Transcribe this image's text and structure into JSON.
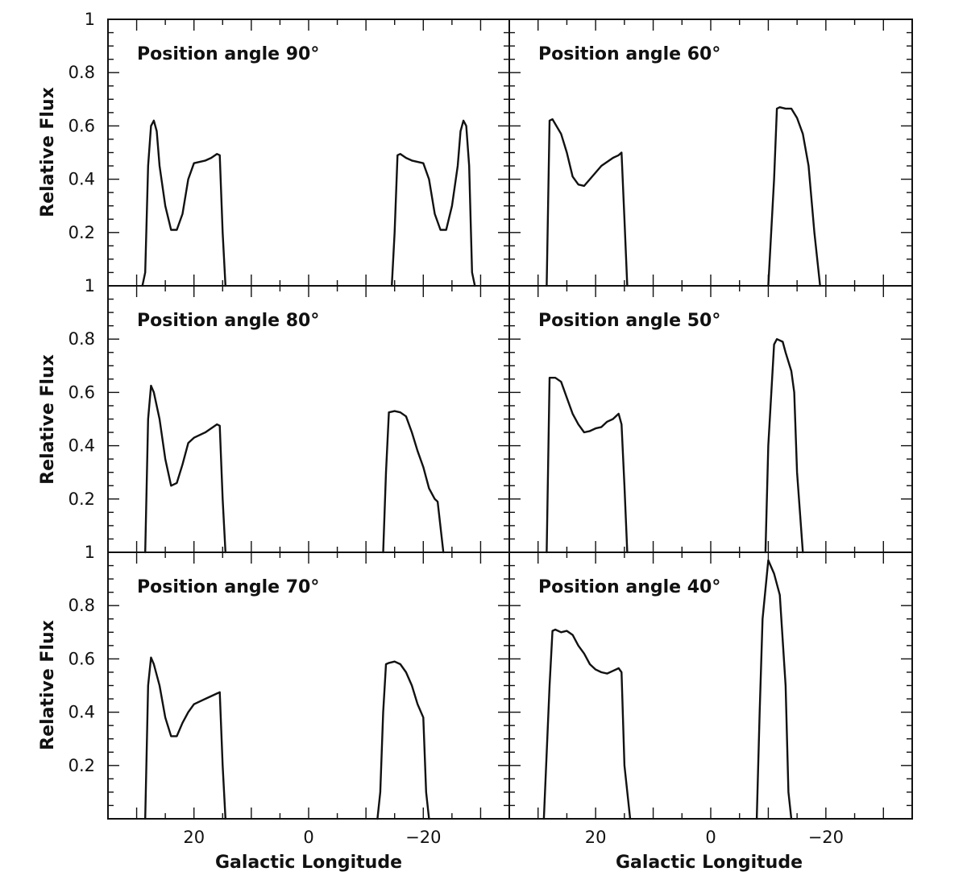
{
  "chart_data": {
    "type": "line",
    "layout": {
      "rows": 3,
      "cols": 2
    },
    "xlabel": "Galactic Longitude",
    "ylabel": "Relative Flux",
    "xlim": [
      35,
      -35
    ],
    "ylim": [
      0,
      1
    ],
    "x_ticks": [
      20,
      0,
      -20
    ],
    "x_tick_labels": [
      "20",
      "0",
      "−20"
    ],
    "y_tick_labels": [
      [
        {
          "value": 0.2,
          "label": "0.2"
        },
        {
          "value": 0.4,
          "label": "0.4"
        },
        {
          "value": 0.6,
          "label": "0.6"
        },
        {
          "value": 0.8,
          "label": "0.8"
        },
        {
          "value": 1.0,
          "label": "1"
        }
      ],
      [
        {
          "value": 0.2,
          "label": "0.2"
        },
        {
          "value": 0.4,
          "label": "0.4"
        },
        {
          "value": 0.6,
          "label": "0.6"
        },
        {
          "value": 0.8,
          "label": "0.8"
        },
        {
          "value": 1.0,
          "label": "1"
        }
      ],
      [
        {
          "value": 0.2,
          "label": "0.2"
        },
        {
          "value": 0.4,
          "label": "0.4"
        },
        {
          "value": 0.6,
          "label": "0.6"
        },
        {
          "value": 0.8,
          "label": "0.8"
        },
        {
          "value": 1.0,
          "label": "1"
        }
      ]
    ],
    "panels": [
      {
        "title": "Position angle 90°",
        "row": 0,
        "col": 0,
        "segments": [
          [
            [
              29,
              0
            ],
            [
              28.5,
              0.05
            ],
            [
              28,
              0.45
            ],
            [
              27.5,
              0.6
            ],
            [
              27,
              0.62
            ],
            [
              26.5,
              0.58
            ],
            [
              26,
              0.45
            ],
            [
              25,
              0.3
            ],
            [
              24,
              0.21
            ],
            [
              23,
              0.21
            ],
            [
              22,
              0.27
            ],
            [
              21,
              0.4
            ],
            [
              20,
              0.46
            ],
            [
              18,
              0.47
            ],
            [
              17,
              0.48
            ],
            [
              16,
              0.495
            ],
            [
              15.5,
              0.49
            ],
            [
              15,
              0.2
            ],
            [
              14.5,
              0
            ]
          ],
          [
            [
              -14.5,
              0
            ],
            [
              -15,
              0.2
            ],
            [
              -15.5,
              0.49
            ],
            [
              -16,
              0.495
            ],
            [
              -17,
              0.48
            ],
            [
              -18,
              0.47
            ],
            [
              -20,
              0.46
            ],
            [
              -21,
              0.4
            ],
            [
              -22,
              0.27
            ],
            [
              -23,
              0.21
            ],
            [
              -24,
              0.21
            ],
            [
              -25,
              0.3
            ],
            [
              -26,
              0.45
            ],
            [
              -26.5,
              0.58
            ],
            [
              -27,
              0.62
            ],
            [
              -27.5,
              0.6
            ],
            [
              -28,
              0.45
            ],
            [
              -28.5,
              0.05
            ],
            [
              -29,
              0
            ]
          ]
        ]
      },
      {
        "title": "Position angle 60°",
        "row": 0,
        "col": 1,
        "segments": [
          [
            [
              28.5,
              0
            ],
            [
              28,
              0.62
            ],
            [
              27.5,
              0.625
            ],
            [
              26,
              0.57
            ],
            [
              25,
              0.5
            ],
            [
              24,
              0.41
            ],
            [
              23,
              0.38
            ],
            [
              22,
              0.375
            ],
            [
              21,
              0.4
            ],
            [
              19,
              0.45
            ],
            [
              17,
              0.48
            ],
            [
              16,
              0.49
            ],
            [
              15.5,
              0.5
            ],
            [
              15,
              0.25
            ],
            [
              14.5,
              0
            ]
          ],
          [
            [
              -10,
              0
            ],
            [
              -11,
              0.4
            ],
            [
              -11.5,
              0.665
            ],
            [
              -12,
              0.67
            ],
            [
              -13,
              0.665
            ],
            [
              -14,
              0.665
            ],
            [
              -15,
              0.63
            ],
            [
              -16,
              0.57
            ],
            [
              -17,
              0.45
            ],
            [
              -18,
              0.2
            ],
            [
              -19,
              0
            ]
          ]
        ]
      },
      {
        "title": "Position angle 80°",
        "row": 1,
        "col": 0,
        "segments": [
          [
            [
              28.5,
              0
            ],
            [
              28,
              0.5
            ],
            [
              27.5,
              0.625
            ],
            [
              27,
              0.6
            ],
            [
              26,
              0.5
            ],
            [
              25,
              0.35
            ],
            [
              24,
              0.25
            ],
            [
              23,
              0.26
            ],
            [
              22,
              0.33
            ],
            [
              21,
              0.41
            ],
            [
              20,
              0.43
            ],
            [
              18,
              0.45
            ],
            [
              16,
              0.48
            ],
            [
              15.5,
              0.475
            ],
            [
              15,
              0.2
            ],
            [
              14.5,
              0
            ]
          ],
          [
            [
              -13,
              0
            ],
            [
              -13.5,
              0.3
            ],
            [
              -14,
              0.525
            ],
            [
              -15,
              0.53
            ],
            [
              -16,
              0.525
            ],
            [
              -17,
              0.51
            ],
            [
              -18,
              0.45
            ],
            [
              -19,
              0.38
            ],
            [
              -20,
              0.32
            ],
            [
              -21,
              0.24
            ],
            [
              -22,
              0.2
            ],
            [
              -22.5,
              0.19
            ],
            [
              -23.5,
              0
            ]
          ]
        ]
      },
      {
        "title": "Position angle 50°",
        "row": 1,
        "col": 1,
        "segments": [
          [
            [
              28.5,
              0
            ],
            [
              28,
              0.655
            ],
            [
              27,
              0.655
            ],
            [
              26,
              0.64
            ],
            [
              25,
              0.58
            ],
            [
              24,
              0.52
            ],
            [
              23,
              0.48
            ],
            [
              22,
              0.45
            ],
            [
              21,
              0.455
            ],
            [
              20,
              0.465
            ],
            [
              19,
              0.47
            ],
            [
              18,
              0.49
            ],
            [
              17,
              0.5
            ],
            [
              16,
              0.52
            ],
            [
              15.5,
              0.48
            ],
            [
              15,
              0.25
            ],
            [
              14.5,
              0
            ]
          ],
          [
            [
              -9.5,
              0
            ],
            [
              -10,
              0.4
            ],
            [
              -11,
              0.78
            ],
            [
              -11.5,
              0.8
            ],
            [
              -12.5,
              0.79
            ],
            [
              -13,
              0.75
            ],
            [
              -14,
              0.68
            ],
            [
              -14.5,
              0.6
            ],
            [
              -15,
              0.3
            ],
            [
              -16,
              0
            ]
          ]
        ]
      },
      {
        "title": "Position angle 70°",
        "row": 2,
        "col": 0,
        "segments": [
          [
            [
              28.5,
              0
            ],
            [
              28,
              0.5
            ],
            [
              27.5,
              0.605
            ],
            [
              27,
              0.58
            ],
            [
              26,
              0.5
            ],
            [
              25,
              0.38
            ],
            [
              24,
              0.31
            ],
            [
              23,
              0.31
            ],
            [
              22,
              0.36
            ],
            [
              21,
              0.4
            ],
            [
              20,
              0.43
            ],
            [
              18,
              0.45
            ],
            [
              16,
              0.47
            ],
            [
              15.5,
              0.475
            ],
            [
              15,
              0.2
            ],
            [
              14.5,
              0
            ]
          ],
          [
            [
              -12,
              0
            ],
            [
              -12.5,
              0.1
            ],
            [
              -13,
              0.4
            ],
            [
              -13.5,
              0.58
            ],
            [
              -14,
              0.585
            ],
            [
              -15,
              0.59
            ],
            [
              -16,
              0.58
            ],
            [
              -17,
              0.55
            ],
            [
              -18,
              0.5
            ],
            [
              -19,
              0.43
            ],
            [
              -20,
              0.38
            ],
            [
              -20.5,
              0.1
            ],
            [
              -21,
              0
            ]
          ]
        ]
      },
      {
        "title": "Position angle 40°",
        "row": 2,
        "col": 1,
        "segments": [
          [
            [
              29,
              0
            ],
            [
              28,
              0.5
            ],
            [
              27.5,
              0.705
            ],
            [
              27,
              0.71
            ],
            [
              26,
              0.7
            ],
            [
              25,
              0.705
            ],
            [
              24,
              0.69
            ],
            [
              23,
              0.65
            ],
            [
              22,
              0.62
            ],
            [
              21,
              0.58
            ],
            [
              20,
              0.56
            ],
            [
              19,
              0.55
            ],
            [
              18,
              0.545
            ],
            [
              17,
              0.555
            ],
            [
              16,
              0.565
            ],
            [
              15.5,
              0.55
            ],
            [
              15,
              0.2
            ],
            [
              14,
              0
            ]
          ],
          [
            [
              -8,
              0
            ],
            [
              -8.5,
              0.4
            ],
            [
              -9,
              0.75
            ],
            [
              -10,
              0.97
            ],
            [
              -11,
              0.92
            ],
            [
              -12,
              0.84
            ],
            [
              -13,
              0.5
            ],
            [
              -13.5,
              0.1
            ],
            [
              -14,
              0
            ]
          ]
        ]
      }
    ]
  }
}
